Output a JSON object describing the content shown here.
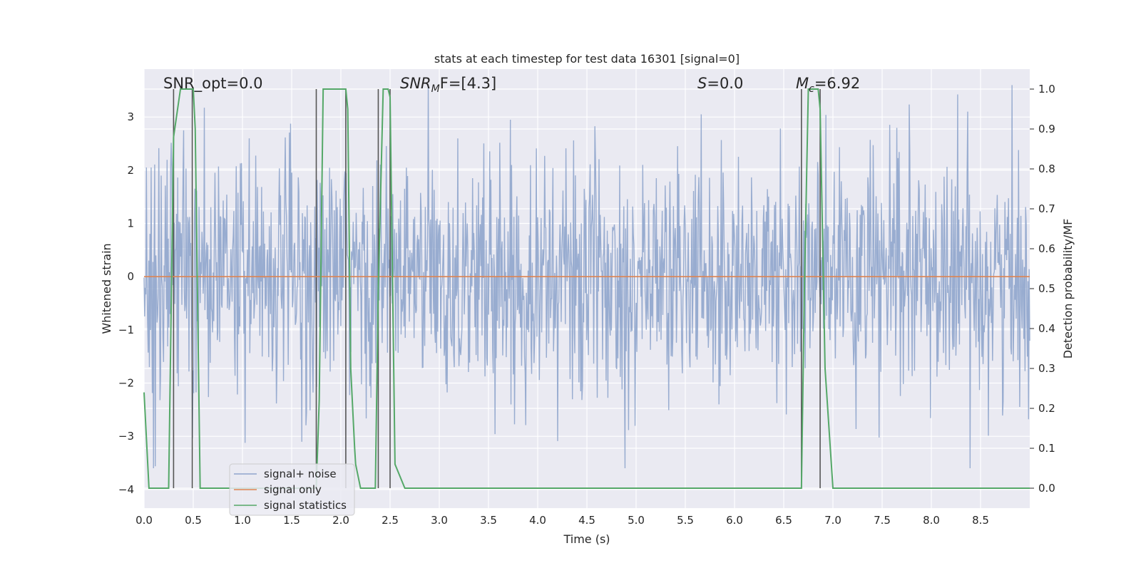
{
  "chart_data": {
    "type": "line",
    "title": "stats at each timestep for test data 16301 [signal=0]",
    "xlabel": "Time (s)",
    "ylabel_left": "Whitened strain",
    "ylabel_right": "Detection probability/MF",
    "xlim": [
      0.0,
      9.0
    ],
    "ylim_left": [
      -4.35,
      3.9
    ],
    "ylim_right": [
      -0.05,
      1.05
    ],
    "xticks": [
      "0.0",
      "0.5",
      "1.0",
      "1.5",
      "2.0",
      "2.5",
      "3.0",
      "3.5",
      "4.0",
      "4.5",
      "5.0",
      "5.5",
      "6.0",
      "6.5",
      "7.0",
      "7.5",
      "8.0",
      "8.5"
    ],
    "xtick_values": [
      0.0,
      0.5,
      1.0,
      1.5,
      2.0,
      2.5,
      3.0,
      3.5,
      4.0,
      4.5,
      5.0,
      5.5,
      6.0,
      6.5,
      7.0,
      7.5,
      8.0,
      8.5
    ],
    "yticks_left": [
      "3",
      "2",
      "1",
      "0",
      "−1",
      "−2",
      "−3",
      "−4"
    ],
    "ytick_values_left": [
      3,
      2,
      1,
      0,
      -1,
      -2,
      -3,
      -4
    ],
    "yticks_right": [
      "1.0",
      "0.9",
      "0.8",
      "0.7",
      "0.6",
      "0.5",
      "0.4",
      "0.3",
      "0.2",
      "0.1",
      "0.0"
    ],
    "ytick_values_right": [
      1.0,
      0.9,
      0.8,
      0.7,
      0.6,
      0.5,
      0.4,
      0.3,
      0.2,
      0.1,
      0.0
    ],
    "annotations": {
      "snr_opt": "SNR_opt=0.0",
      "snr_mf_prefix": "SNR",
      "snr_mf_sub": "M",
      "snr_mf_suffix": "F=[4.3]",
      "s_var": "S",
      "s_value": "=0.0",
      "mc_var": "M",
      "mc_sub": "c",
      "mc_value": "=6.92"
    },
    "legend": {
      "placement": "lower-left",
      "entries": [
        "signal+ noise",
        "signal only",
        "signal statistics"
      ]
    },
    "series": [
      {
        "name": "signal+ noise",
        "color": "#8fa5cc",
        "description": "whitened strain noise, amplitude roughly within -3.6 to 3.6",
        "noise_sigma": 1.0,
        "n_points": 1500,
        "y_min": -3.6,
        "y_max": 3.6
      },
      {
        "name": "signal only",
        "color": "#dd8452",
        "x": [
          0.0,
          9.0
        ],
        "y": [
          0.0,
          0.0
        ]
      },
      {
        "name": "signal statistics",
        "color": "#55a868",
        "axis": "right",
        "x": [
          0.0,
          0.05,
          0.1,
          0.25,
          0.3,
          0.37,
          0.5,
          0.52,
          0.57,
          1.55,
          1.75,
          1.78,
          1.82,
          2.05,
          2.07,
          2.1,
          2.14,
          2.15,
          2.2,
          2.35,
          2.38,
          2.43,
          2.48,
          2.5,
          2.55,
          2.65,
          2.8,
          3.0,
          6.5,
          6.68,
          6.71,
          6.75,
          6.8,
          6.85,
          6.87,
          6.92,
          7.0,
          9.0
        ],
        "y": [
          0.24,
          0.0,
          0.0,
          0.0,
          0.88,
          1.0,
          1.0,
          0.9,
          0.0,
          0.0,
          0.0,
          0.22,
          1.0,
          1.0,
          0.95,
          0.3,
          0.1,
          0.06,
          0.0,
          0.0,
          0.5,
          1.0,
          1.0,
          0.98,
          0.06,
          0.0,
          0.0,
          0.0,
          0.0,
          0.0,
          0.5,
          1.0,
          1.0,
          1.0,
          0.95,
          0.3,
          0.0,
          0.0
        ]
      }
    ],
    "vertical_markers": {
      "color": "#555555",
      "x": [
        0.3,
        0.49,
        1.75,
        2.05,
        2.38,
        2.5,
        6.68,
        6.87
      ],
      "y_range_right": [
        0.0,
        1.0
      ]
    }
  }
}
